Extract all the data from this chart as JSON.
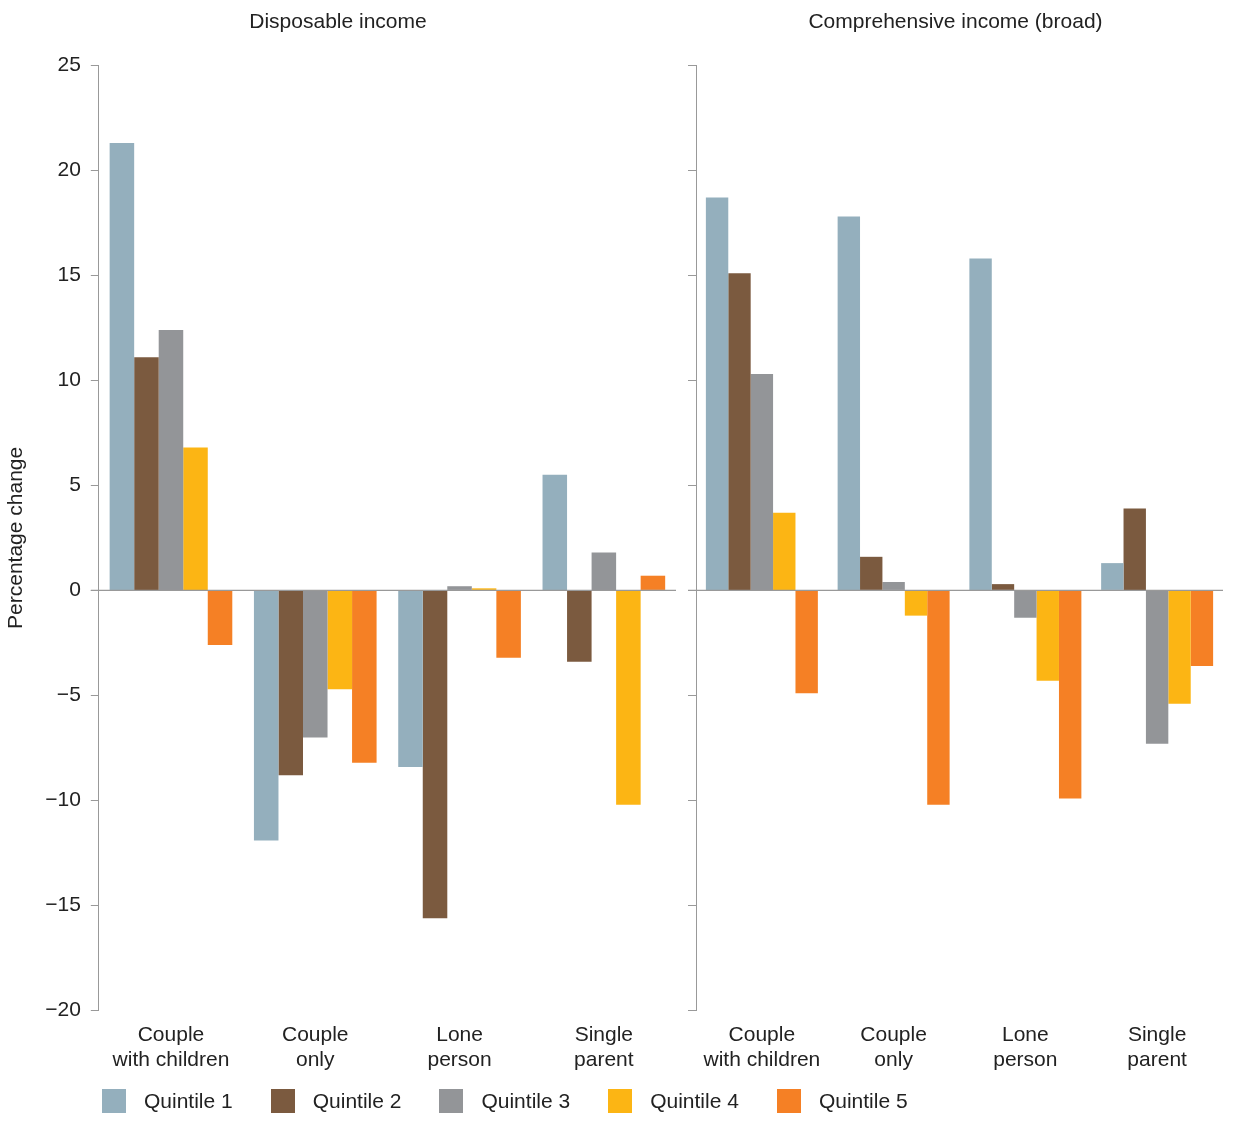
{
  "chart_data": [
    {
      "type": "bar",
      "title": "Disposable income",
      "ylabel": "Percentage change",
      "categories": [
        "Couple with children",
        "Couple only",
        "Lone person",
        "Single parent"
      ],
      "ylim": [
        -20,
        25
      ],
      "yticks": [
        {
          "value": -20,
          "label": "−20"
        },
        {
          "value": -15,
          "label": "−15"
        },
        {
          "value": -10,
          "label": "−10"
        },
        {
          "value": -5,
          "label": "−5"
        },
        0,
        5,
        10,
        15,
        20,
        25
      ],
      "legend": "bottom",
      "series": [
        {
          "name": "Quintile 1",
          "color": "#94afbd",
          "values": [
            21.3,
            -11.9,
            -8.4,
            5.5
          ]
        },
        {
          "name": "Quintile 2",
          "color": "#7b5a3f",
          "values": [
            11.1,
            -8.8,
            -15.6,
            -3.4
          ]
        },
        {
          "name": "Quintile 3",
          "color": "#939598",
          "values": [
            12.4,
            -7.0,
            0.2,
            1.8
          ]
        },
        {
          "name": "Quintile 4",
          "color": "#fcb514",
          "values": [
            6.8,
            -4.7,
            0.1,
            -10.2
          ]
        },
        {
          "name": "Quintile 5",
          "color": "#f58025",
          "values": [
            -2.6,
            -8.2,
            -3.2,
            0.7
          ]
        }
      ]
    },
    {
      "type": "bar",
      "title": "Comprehensive income (broad)",
      "categories": [
        "Couple with children",
        "Couple only",
        "Lone person",
        "Single parent"
      ],
      "ylim": [
        -20,
        25
      ],
      "yticks": [
        -20,
        -15,
        -10,
        -5,
        0,
        5,
        10,
        15,
        20,
        25
      ],
      "tick_labels": "x",
      "series": [
        {
          "color": "#94afbd",
          "values": [
            18.7,
            17.8,
            15.8,
            1.3
          ]
        },
        {
          "color": "#7b5a3f",
          "values": [
            15.1,
            1.6,
            0.3,
            3.9
          ]
        },
        {
          "color": "#939598",
          "values": [
            10.3,
            0.4,
            -1.3,
            -7.3
          ]
        },
        {
          "color": "#fcb514",
          "values": [
            3.7,
            -1.2,
            -4.3,
            -5.4
          ]
        },
        {
          "color": "#f58025",
          "values": [
            -4.9,
            -10.2,
            -9.9,
            -3.6
          ]
        }
      ]
    }
  ]
}
